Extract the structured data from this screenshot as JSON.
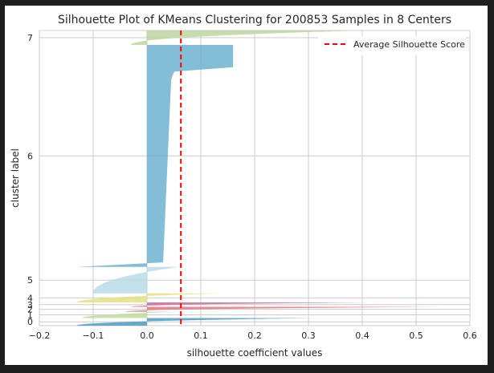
{
  "chart_data": {
    "type": "silhouette",
    "title": "Silhouette Plot of KMeans Clustering for 200853 Samples in 8 Centers",
    "xlabel": "silhouette coefficient values",
    "ylabel": "cluster label",
    "xlim": [
      -0.2,
      0.6
    ],
    "xticks": [
      -0.2,
      -0.1,
      0.0,
      0.1,
      0.2,
      0.3,
      0.4,
      0.5,
      0.6
    ],
    "xtick_labels": [
      "−0.2",
      "−0.1",
      "0.0",
      "0.1",
      "0.2",
      "0.3",
      "0.4",
      "0.5",
      "0.6"
    ],
    "ylim": [
      0,
      200853
    ],
    "grid": true,
    "average_score": 0.063,
    "legend": {
      "entries": [
        "Average Silhouette Score"
      ],
      "position": "top-right"
    },
    "clusters": [
      {
        "label": "0",
        "start": 0,
        "end": 5200,
        "min": -0.13,
        "max": 0.315,
        "color": "#4c9bbf"
      },
      {
        "label": "1",
        "start": 5200,
        "end": 9500,
        "min": -0.12,
        "max": 0.07,
        "color": "#c0d9a0"
      },
      {
        "label": "2",
        "start": 9500,
        "end": 12800,
        "min": -0.04,
        "max": 0.545,
        "color": "#e0747f"
      },
      {
        "label": "3",
        "start": 12800,
        "end": 15800,
        "min": -0.03,
        "max": 0.415,
        "color": "#cc6a96"
      },
      {
        "label": "4",
        "start": 15800,
        "end": 22000,
        "min": -0.13,
        "max": 0.14,
        "color": "#e4e07c"
      },
      {
        "label": "5",
        "start": 22000,
        "end": 40000,
        "min": -0.1,
        "max": 0.06,
        "color": "#b8dce8"
      },
      {
        "label": "6",
        "start": 40000,
        "end": 191000,
        "min": -0.13,
        "max": 0.16,
        "color": "#6fb1cf"
      },
      {
        "label": "7",
        "start": 191000,
        "end": 200853,
        "min": -0.03,
        "max": 0.4,
        "color": "#bdd6a0"
      }
    ],
    "ytick_labels": [
      "0",
      "1",
      "2",
      "3",
      "4",
      "5",
      "6",
      "7"
    ]
  }
}
